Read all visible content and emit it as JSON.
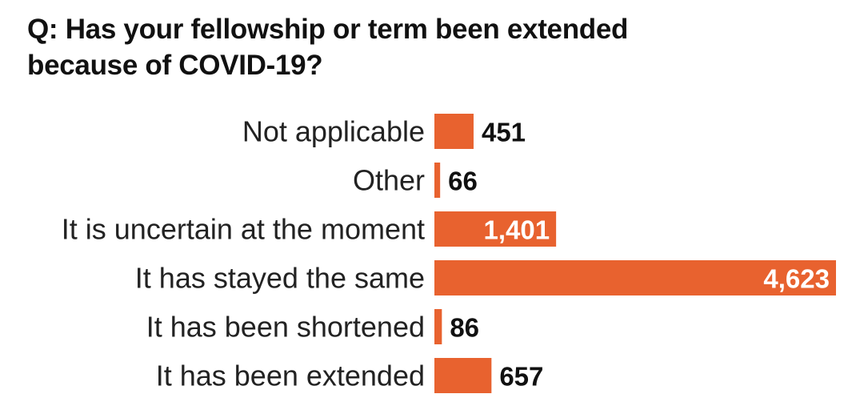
{
  "title_lines": [
    "Q: Has your fellowship or term been extended",
    "because of COVID-19?"
  ],
  "bar_color": "#e8622f",
  "chart_data": {
    "type": "bar",
    "orientation": "horizontal",
    "title": "Q: Has your fellowship or term been extended because of COVID-19?",
    "categories": [
      "Not applicable",
      "Other",
      "It is uncertain at the moment",
      "It has stayed the same",
      "It has been shortened",
      "It has been extended"
    ],
    "values": [
      451,
      66,
      1401,
      4623,
      86,
      657
    ],
    "value_labels": [
      "451",
      "66",
      "1,401",
      "4,623",
      "86",
      "657"
    ],
    "xlabel": "",
    "ylabel": "",
    "grid": false,
    "legend": "none"
  }
}
